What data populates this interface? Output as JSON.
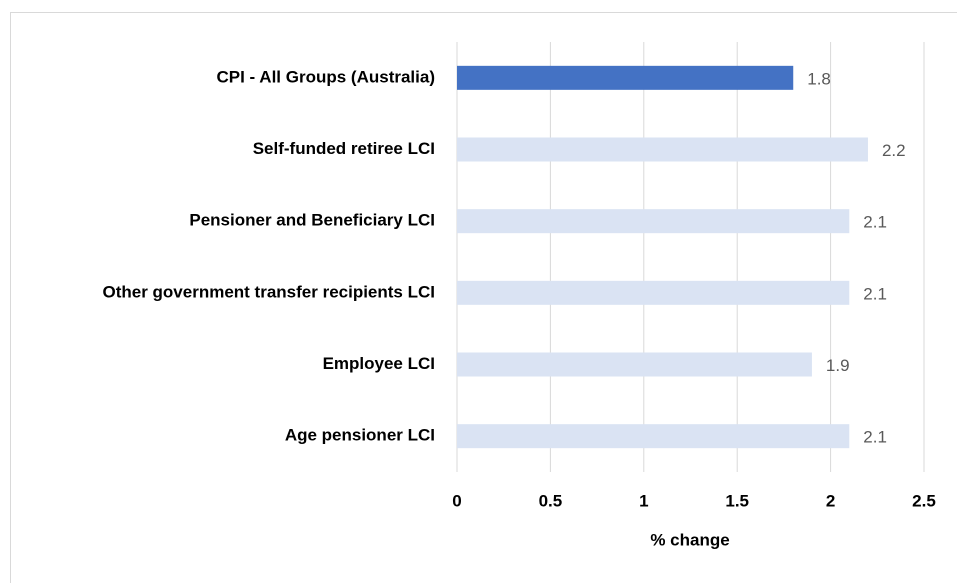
{
  "chart_data": {
    "type": "barh",
    "categories": [
      "CPI - All Groups (Australia)",
      "Self-funded retiree LCI",
      "Pensioner and Beneficiary LCI",
      "Other government transfer recipients LCI",
      "Employee LCI",
      "Age pensioner LCI"
    ],
    "values": [
      1.8,
      2.2,
      2.1,
      2.1,
      1.9,
      2.1
    ],
    "colors": [
      "#4472c4",
      "#dae3f3",
      "#dae3f3",
      "#dae3f3",
      "#dae3f3",
      "#dae3f3"
    ],
    "xlabel": "% change",
    "xlim": [
      0,
      2.5
    ],
    "xticks": [
      0,
      0.5,
      1,
      1.5,
      2,
      2.5
    ],
    "grid": true
  }
}
